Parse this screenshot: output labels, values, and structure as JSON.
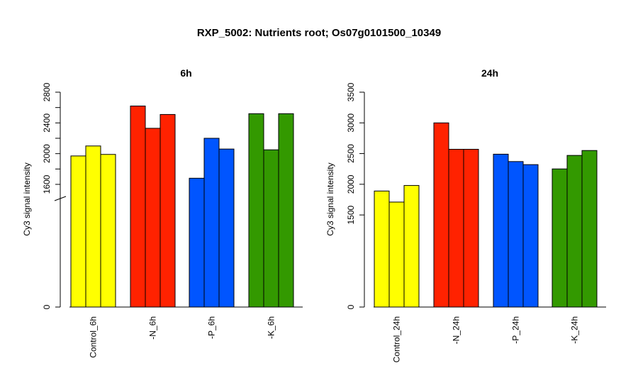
{
  "title": "RXP_5002: Nutrients root; Os07g0101500_10349",
  "chart_data": [
    {
      "type": "bar",
      "title": "6h",
      "ylabel": "Cy3 signal intensity",
      "categories": [
        "Control_6h",
        "-N_6h",
        "-P_6h",
        "-K_6h"
      ],
      "colors": [
        "#ffff00",
        "#ff2200",
        "#0055ff",
        "#339900"
      ],
      "groups": [
        {
          "category": "Control_6h",
          "values": [
            1970,
            2100,
            1990
          ]
        },
        {
          "category": "-N_6h",
          "values": [
            2620,
            2330,
            2510
          ]
        },
        {
          "category": "-P_6h",
          "values": [
            1680,
            2200,
            2060
          ]
        },
        {
          "category": "-K_6h",
          "values": [
            2520,
            2050,
            2520
          ]
        }
      ],
      "y_axis": {
        "break": true,
        "ticks": [
          0,
          1600,
          2000,
          2400,
          2800
        ],
        "labeled_ticks": [
          "0",
          "1600",
          "2000",
          "2400",
          "2800"
        ],
        "minor_ticks": [
          1800,
          2200,
          2600
        ]
      }
    },
    {
      "type": "bar",
      "title": "24h",
      "ylabel": "Cy3 signal intensity",
      "categories": [
        "Control_24h",
        "-N_24h",
        "-P_24h",
        "-K_24h"
      ],
      "colors": [
        "#ffff00",
        "#ff2200",
        "#0055ff",
        "#339900"
      ],
      "groups": [
        {
          "category": "Control_24h",
          "values": [
            1890,
            1710,
            1980
          ]
        },
        {
          "category": "-N_24h",
          "values": [
            3000,
            2570,
            2570
          ]
        },
        {
          "category": "-P_24h",
          "values": [
            2490,
            2370,
            2320
          ]
        },
        {
          "category": "-K_24h",
          "values": [
            2250,
            2470,
            2550
          ]
        }
      ],
      "y_axis": {
        "break": false,
        "ticks": [
          0,
          1500,
          2000,
          2500,
          3000,
          3500
        ],
        "labeled_ticks": [
          "0",
          "1500",
          "2000",
          "2500",
          "3000",
          "3500"
        ],
        "minor_ticks": []
      }
    }
  ]
}
